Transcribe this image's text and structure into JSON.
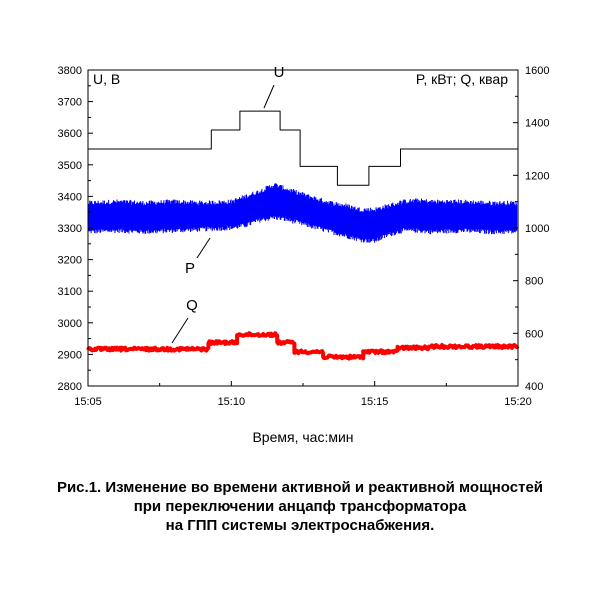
{
  "chart_data": {
    "type": "line",
    "left_axis_label": "U, В",
    "right_axis_label": "P, кВт; Q, квар",
    "xlabel": "Время, час:мин",
    "x_ticks": [
      "15:05",
      "15:10",
      "15:15",
      "15:20"
    ],
    "xlim_minutes": [
      0,
      15
    ],
    "ylim_left": [
      2800,
      3800
    ],
    "ylim_right": [
      400,
      1600
    ],
    "y_ticks_left": [
      "2800",
      "2900",
      "3000",
      "3100",
      "3200",
      "3300",
      "3400",
      "3500",
      "3600",
      "3700",
      "3800"
    ],
    "y_ticks_right": [
      "400",
      "600",
      "800",
      "1000",
      "1200",
      "1400",
      "1600"
    ],
    "series": [
      {
        "name": "U",
        "axis": "left",
        "color": "#000000",
        "steps": [
          {
            "from": "15:05",
            "to": "15:09.3",
            "value": 3550
          },
          {
            "from": "15:09.3",
            "to": "15:10.3",
            "value": 3610
          },
          {
            "from": "15:10.3",
            "to": "15:11.7",
            "value": 3670
          },
          {
            "from": "15:11.7",
            "to": "15:12.4",
            "value": 3610
          },
          {
            "from": "15:12.4",
            "to": "15:13.7",
            "value": 3495
          },
          {
            "from": "15:13.7",
            "to": "15:14.8",
            "value": 3435
          },
          {
            "from": "15:14.8",
            "to": "15:15.9",
            "value": 3495
          },
          {
            "from": "15:15.9",
            "to": "15:20",
            "value": 3550
          }
        ]
      },
      {
        "name": "P",
        "axis": "right",
        "color": "#0000ff",
        "x_minutes": [
          0,
          1,
          2,
          3,
          4,
          5,
          5.5,
          6,
          6.5,
          7,
          8,
          8.5,
          9,
          9.5,
          10,
          10.5,
          11,
          11.5,
          12,
          13,
          14,
          15
        ],
        "min": [
          985,
          990,
          985,
          990,
          995,
          1000,
          1010,
          1030,
          1040,
          1030,
          1000,
          985,
          970,
          955,
          950,
          975,
          990,
          990,
          985,
          990,
          985,
          985
        ],
        "max": [
          1095,
          1100,
          1095,
          1100,
          1095,
          1100,
          1120,
          1140,
          1165,
          1145,
          1110,
          1095,
          1085,
          1070,
          1070,
          1085,
          1100,
          1105,
          1100,
          1100,
          1095,
          1095
        ]
      },
      {
        "name": "Q",
        "axis": "right",
        "color": "#ff0000",
        "steps": [
          {
            "from": "15:05",
            "to": "15:09.2",
            "value": 540
          },
          {
            "from": "15:09.2",
            "to": "15:10.2",
            "value": 565
          },
          {
            "from": "15:10.2",
            "to": "15:11.6",
            "value": 595
          },
          {
            "from": "15:11.6",
            "to": "15:12.2",
            "value": 565
          },
          {
            "from": "15:12.2",
            "to": "15:13.2",
            "value": 530
          },
          {
            "from": "15:13.2",
            "to": "15:14.6",
            "value": 510
          },
          {
            "from": "15:14.6",
            "to": "15:15.8",
            "value": 530
          },
          {
            "from": "15:15.8",
            "to": "15:17",
            "value": 545
          },
          {
            "from": "15:17",
            "to": "15:20",
            "value": 550
          }
        ]
      }
    ]
  },
  "caption": {
    "line1": "Рис.1. Изменение во времени активной и реактивной мощностей",
    "line2": "при переключении анцапф трансформатора",
    "line3": "на ГПП системы электроснабжения."
  }
}
